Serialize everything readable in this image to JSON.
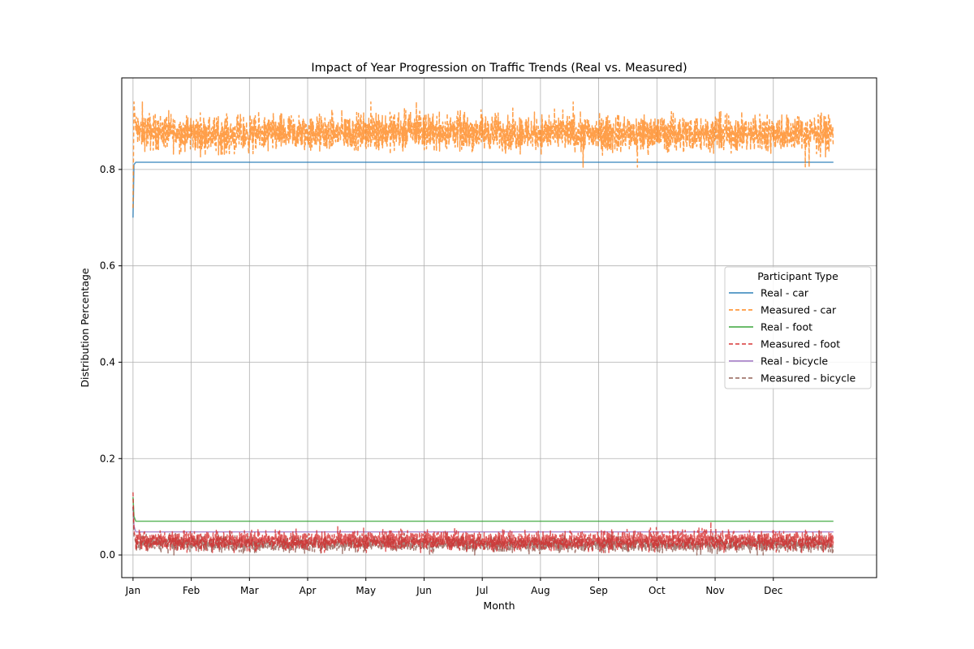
{
  "chart_data": {
    "type": "line",
    "title": "Impact of Year Progression on Traffic Trends (Real vs. Measured)",
    "xlabel": "Month",
    "ylabel": "Distribution Percentage",
    "x_unit": "day of year",
    "xlim": [
      -6,
      396
    ],
    "ylim": [
      -0.047,
      0.99
    ],
    "x_ticks": [
      {
        "x": 0,
        "label": "Jan"
      },
      {
        "x": 31,
        "label": "Feb"
      },
      {
        "x": 62,
        "label": "Mar"
      },
      {
        "x": 93,
        "label": "Apr"
      },
      {
        "x": 124,
        "label": "May"
      },
      {
        "x": 155,
        "label": "Jun"
      },
      {
        "x": 186,
        "label": "Jul"
      },
      {
        "x": 217,
        "label": "Aug"
      },
      {
        "x": 248,
        "label": "Sep"
      },
      {
        "x": 279,
        "label": "Oct"
      },
      {
        "x": 310,
        "label": "Nov"
      },
      {
        "x": 341,
        "label": "Dec"
      }
    ],
    "y_ticks": [
      {
        "y": 0.0,
        "label": "0.0"
      },
      {
        "y": 0.2,
        "label": "0.2"
      },
      {
        "y": 0.4,
        "label": "0.4"
      },
      {
        "y": 0.6,
        "label": "0.6"
      },
      {
        "y": 0.8,
        "label": "0.8"
      }
    ],
    "grid": true,
    "legend": {
      "title": "Participant Type",
      "placement": "center-right"
    },
    "series": [
      {
        "name": "Real - car",
        "color": "#1f77b4",
        "style": "solid",
        "x": [
          0,
          0.5,
          1.5,
          373
        ],
        "values": [
          0.7,
          0.81,
          0.815,
          0.815
        ]
      },
      {
        "name": "Measured - car",
        "color": "#ff7f0e",
        "style": "dashed",
        "x": [
          0,
          0.5,
          1.5,
          50,
          100,
          150,
          200,
          250,
          300,
          373
        ],
        "values": [
          0.72,
          0.94,
          0.88,
          0.872,
          0.875,
          0.88,
          0.877,
          0.874,
          0.876,
          0.875
        ],
        "noise_range": [
          0.8,
          0.94
        ]
      },
      {
        "name": "Real - foot",
        "color": "#2ca02c",
        "style": "solid",
        "x": [
          0,
          0.5,
          1.5,
          373
        ],
        "values": [
          0.12,
          0.08,
          0.07,
          0.07
        ]
      },
      {
        "name": "Measured - foot",
        "color": "#d62728",
        "style": "dashed",
        "x": [
          0,
          0.5,
          1.5,
          50,
          100,
          150,
          200,
          250,
          300,
          373
        ],
        "values": [
          0.13,
          0.05,
          0.03,
          0.03,
          0.03,
          0.032,
          0.029,
          0.03,
          0.031,
          0.03
        ],
        "noise_range": [
          0.005,
          0.08
        ]
      },
      {
        "name": "Real - bicycle",
        "color": "#9467bd",
        "style": "solid",
        "x": [
          0,
          0.5,
          1.5,
          373
        ],
        "values": [
          0.1,
          0.06,
          0.048,
          0.048
        ]
      },
      {
        "name": "Measured - bicycle",
        "color": "#8c564b",
        "style": "dashed",
        "x": [
          0,
          0.5,
          1.5,
          50,
          100,
          150,
          200,
          250,
          300,
          373
        ],
        "values": [
          0.1,
          0.04,
          0.025,
          0.022,
          0.023,
          0.024,
          0.022,
          0.023,
          0.022,
          0.022
        ],
        "noise_range": [
          0.0,
          0.06
        ]
      }
    ]
  }
}
